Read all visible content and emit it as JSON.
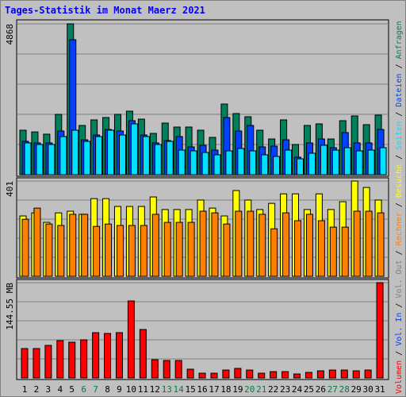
{
  "title": "Tages-Statistik im Monat Maerz 2021",
  "legend_separator": " / ",
  "chart_data": [
    {
      "type": "bar",
      "ylim": [
        0,
        4868
      ],
      "yticks": [
        4868
      ],
      "series": [
        {
          "name": "Anfragen",
          "color": "#00805c",
          "values": [
            1435,
            1380,
            1307,
            1947,
            4868,
            1588,
            1768,
            1845,
            1947,
            2050,
            1793,
            1332,
            1665,
            1537,
            1537,
            1435,
            1204,
            2280,
            1973,
            1870,
            1435,
            1153,
            1768,
            974,
            1588,
            1640,
            1153,
            1742,
            1896,
            1614,
            1922
          ]
        },
        {
          "name": "Dateien",
          "color": "#0040ff",
          "values": [
            1076,
            1025,
            1025,
            1409,
            4355,
            1127,
            1281,
            1460,
            1409,
            1742,
            1281,
            1025,
            1102,
            1230,
            897,
            948,
            794,
            1845,
            1409,
            1588,
            897,
            922,
            1127,
            564,
            1025,
            1153,
            871,
            1358,
            1025,
            1025,
            1460
          ]
        },
        {
          "name": "Seiten",
          "color": "#00e0ff",
          "values": [
            1025,
            974,
            974,
            1230,
            1435,
            1076,
            1230,
            1435,
            1281,
            1640,
            1230,
            974,
            1076,
            794,
            769,
            717,
            641,
            769,
            845,
            769,
            641,
            589,
            794,
            512,
            692,
            948,
            794,
            871,
            769,
            794,
            871
          ]
        }
      ]
    },
    {
      "type": "bar",
      "ylim": [
        0,
        401
      ],
      "yticks": [
        401
      ],
      "series": [
        {
          "name": "Besuche",
          "color": "#ffff00",
          "values": [
            254,
            267,
            227,
            267,
            274,
            261,
            327,
            327,
            294,
            294,
            294,
            334,
            281,
            281,
            281,
            321,
            287,
            254,
            361,
            321,
            281,
            307,
            347,
            347,
            281,
            347,
            281,
            314,
            401,
            374,
            321
          ]
        },
        {
          "name": "Rechner",
          "color": "#ff8000",
          "values": [
            240,
            287,
            220,
            214,
            261,
            261,
            210,
            220,
            214,
            214,
            214,
            261,
            227,
            227,
            227,
            274,
            267,
            220,
            274,
            274,
            261,
            200,
            267,
            234,
            261,
            234,
            207,
            207,
            274,
            274,
            267
          ]
        }
      ]
    },
    {
      "type": "bar",
      "ylim": [
        0,
        144.55
      ],
      "yticks": [
        {
          "value": 144.55,
          "label": "144.55 MB"
        }
      ],
      "categories": [
        "1",
        "2",
        "3",
        "4",
        "5",
        "6",
        "7",
        "8",
        "9",
        "10",
        "11",
        "12",
        "13",
        "14",
        "15",
        "16",
        "17",
        "18",
        "19",
        "20",
        "21",
        "22",
        "23",
        "24",
        "25",
        "26",
        "27",
        "28",
        "29",
        "30",
        "31"
      ],
      "category_colors": [
        "#000000",
        "#000000",
        "#000000",
        "#000000",
        "#000000",
        "#008040",
        "#008040",
        "#000000",
        "#000000",
        "#000000",
        "#000000",
        "#000000",
        "#008040",
        "#008040",
        "#000000",
        "#000000",
        "#000000",
        "#000000",
        "#000000",
        "#008040",
        "#008040",
        "#000000",
        "#000000",
        "#000000",
        "#000000",
        "#000000",
        "#008040",
        "#008040",
        "#000000",
        "#000000",
        "#000000"
      ],
      "series": [
        {
          "name": "Volumen",
          "color": "#ff0000",
          "values": [
            44.6,
            44.6,
            49.4,
            56.6,
            54.2,
            57.8,
            68.7,
            67.5,
            68.7,
            116.8,
            73.5,
            27.7,
            26.5,
            26.5,
            13.3,
            7.2,
            7.2,
            12.0,
            14.5,
            12.0,
            7.2,
            9.6,
            9.6,
            6.0,
            8.4,
            10.8,
            12.0,
            12.0,
            10.8,
            12.0,
            144.55
          ]
        }
      ],
      "legend_extra": [
        {
          "name": "Vol. In",
          "color": "#0040ff"
        },
        {
          "name": "Vol. Out",
          "color": "#808080"
        }
      ]
    }
  ]
}
